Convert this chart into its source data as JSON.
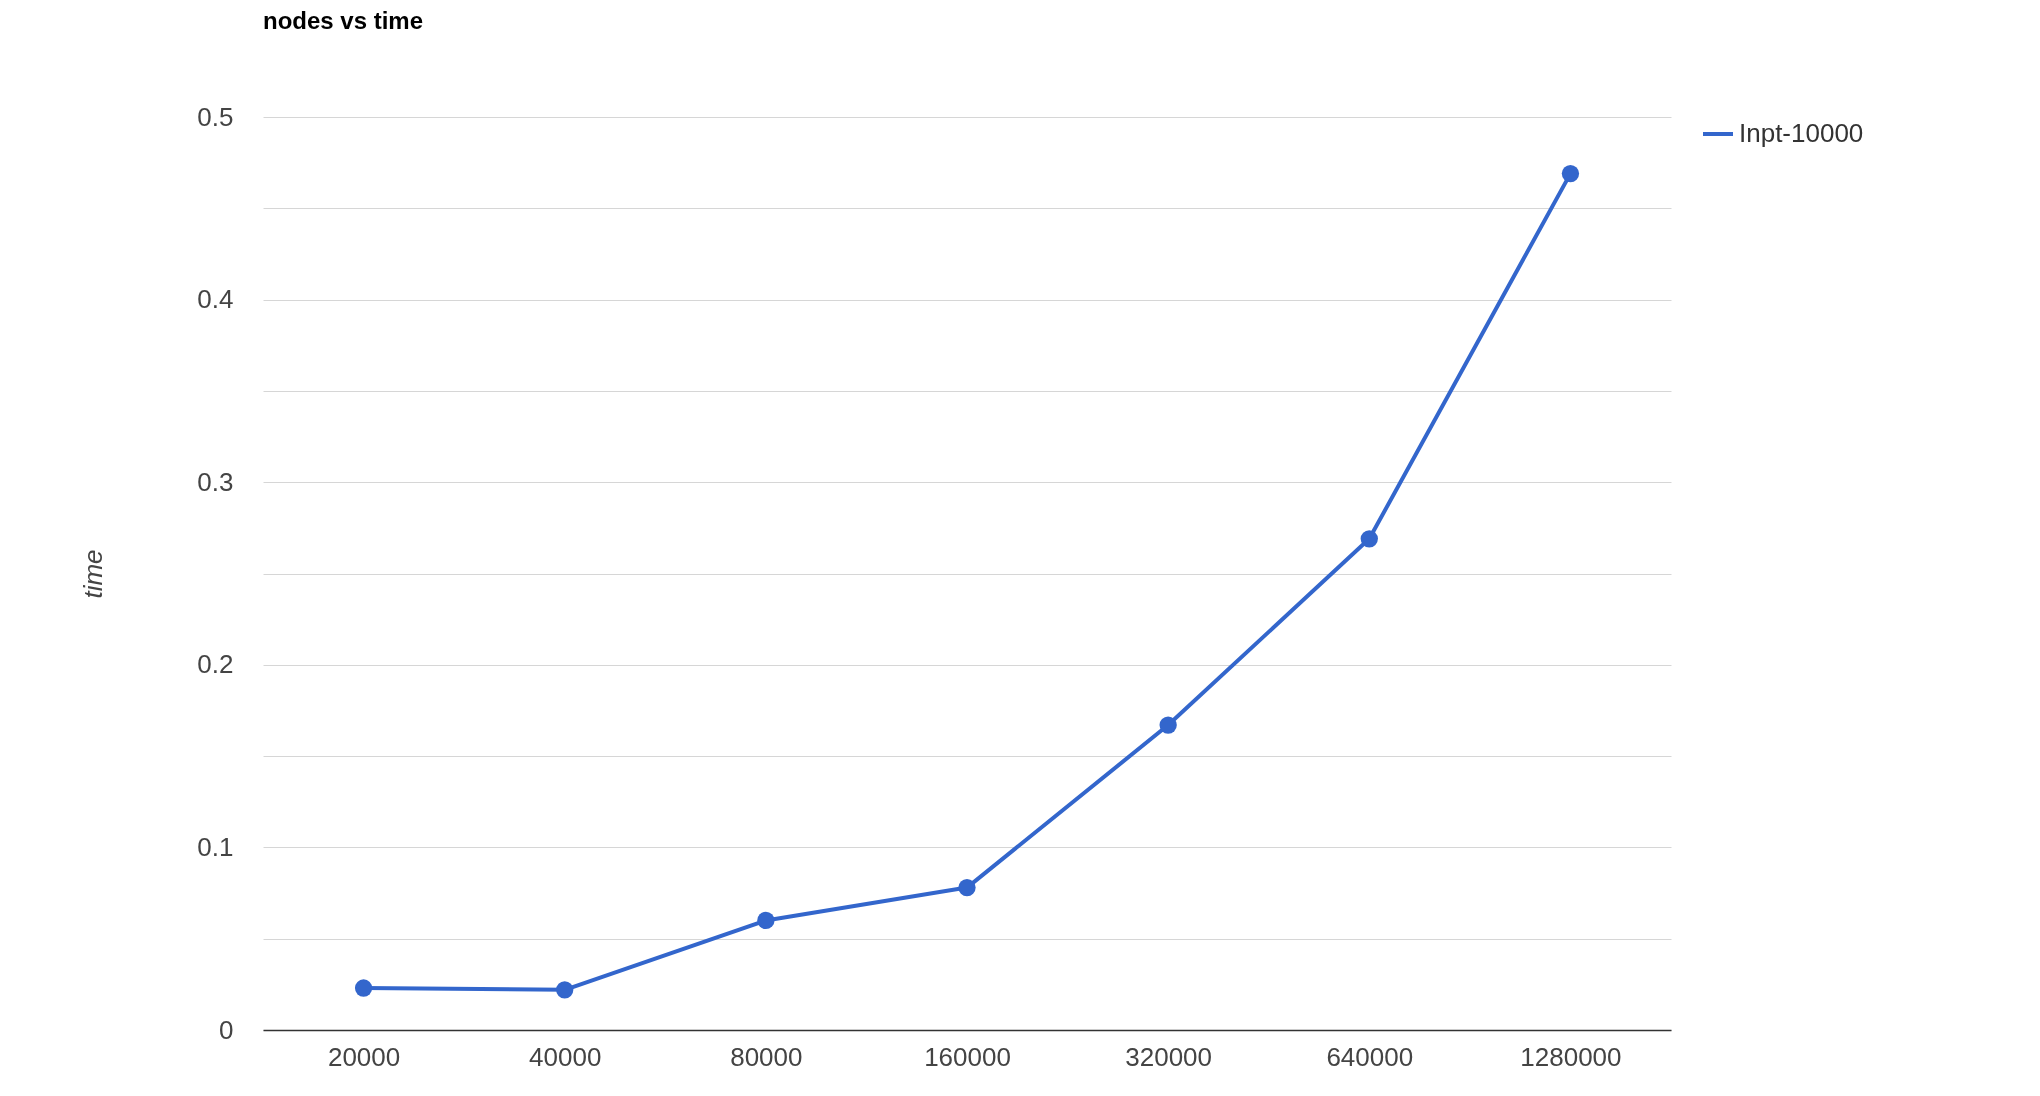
{
  "chart_data": {
    "type": "line",
    "title": "nodes vs time",
    "ylabel": "time",
    "categories": [
      "20000",
      "40000",
      "80000",
      "160000",
      "320000",
      "640000",
      "1280000"
    ],
    "series": [
      {
        "name": "Inpt-10000",
        "color": "#3366cc",
        "values": [
          0.023,
          0.022,
          0.06,
          0.078,
          0.167,
          0.269,
          0.469
        ]
      }
    ],
    "ylim": [
      0,
      0.5
    ],
    "yticks": [
      0,
      {
        "value": 0.05,
        "label": null
      },
      0.1,
      {
        "value": 0.15,
        "label": null
      },
      0.2,
      {
        "value": 0.25,
        "label": null
      },
      0.3,
      {
        "value": 0.35,
        "label": null
      },
      0.4,
      {
        "value": 0.45,
        "label": null
      },
      0.5
    ],
    "grid": "y",
    "legend": "top right",
    "marker": "circle",
    "line_style": "solid"
  }
}
